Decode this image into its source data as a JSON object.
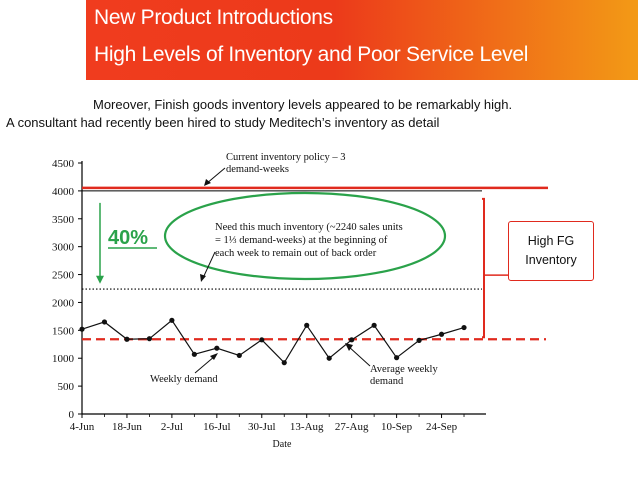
{
  "header": {
    "title_line1": "New Product Introductions",
    "title_line2": "High Levels of Inventory and Poor Service Level"
  },
  "intro": {
    "line1": "Moreover, Finish goods inventory levels appeared to be remarkably high.",
    "line2": "A consultant had recently been hired to study Meditech’s inventory as detail"
  },
  "colors": {
    "accent": "#e02a1e",
    "green": "#2aa24a",
    "banner_start": "#f03c1e",
    "banner_end": "#f39a16"
  },
  "chart_data": {
    "type": "line",
    "xlabel": "Date",
    "ylim": [
      0,
      4500
    ],
    "y_ticks": [
      0,
      500,
      1000,
      1500,
      2000,
      2500,
      3000,
      3500,
      4000,
      4500
    ],
    "x_tick_labels": [
      "4-Jun",
      "18-Jun",
      "2-Jul",
      "16-Jul",
      "30-Jul",
      "13-Aug",
      "27-Aug",
      "10-Sep",
      "24-Sep"
    ],
    "x_tick_weeks": [
      0,
      2,
      4,
      6,
      8,
      10,
      12,
      14,
      16
    ],
    "series": [
      {
        "name": "Weekly demand",
        "x_weeks": [
          0,
          1,
          2,
          3,
          4,
          5,
          6,
          7,
          8,
          9,
          10,
          11,
          12,
          13,
          14,
          15,
          16,
          17
        ],
        "values": [
          1520,
          1650,
          1340,
          1350,
          1680,
          1070,
          1180,
          1050,
          1330,
          920,
          1590,
          1000,
          1330,
          1590,
          1010,
          1320,
          1430,
          1550
        ]
      }
    ],
    "reference_lines": [
      {
        "label": "Current inventory policy – 3 demand-weeks",
        "value": 4000,
        "style": "solid"
      },
      {
        "label": "Need this much inventory (~2240 sales units = 1⅓ demand-weeks) at the beginning of each week to remain out of back order",
        "value": 2240,
        "style": "dotted"
      },
      {
        "label": "Average weekly demand",
        "value": 1340,
        "style": "dashed"
      }
    ],
    "annotations": {
      "weekly_demand": "Weekly demand",
      "policy_line1": "Current inventory policy – 3",
      "policy_line2": "demand-weeks",
      "need_line1": "Need this much inventory (~2240 sales units",
      "need_line2": "= 1⅓ demand-weeks) at the beginning of",
      "need_line3": "each week to remain out of back order",
      "avg_line1": "Average weekly",
      "avg_line2": "demand",
      "percent": "40%",
      "callout_line1": "High FG",
      "callout_line2": "Inventory"
    }
  }
}
